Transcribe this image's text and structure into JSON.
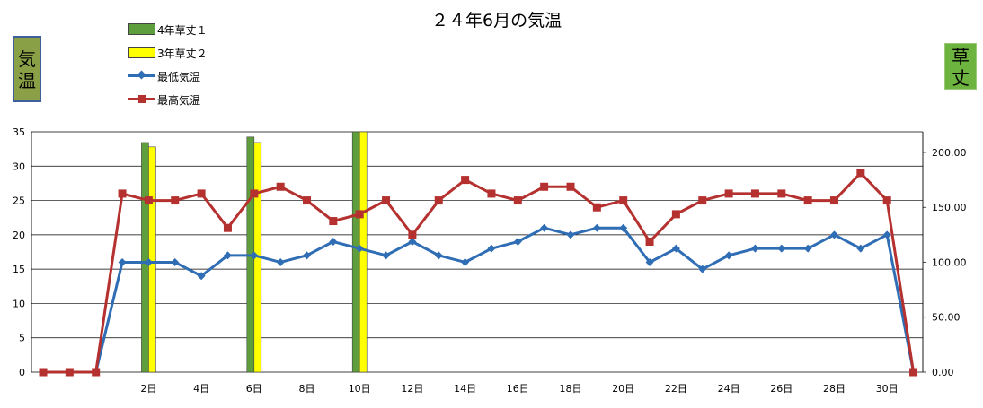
{
  "title": "２４年6月の気温",
  "left_axis_box": {
    "chars": [
      "気",
      "温"
    ],
    "color": "#8aa046"
  },
  "right_axis_box": {
    "chars": [
      "草",
      "丈"
    ],
    "color": "#6cb33f"
  },
  "legend": [
    {
      "label": "4年草丈１",
      "kind": "bar",
      "color": "#5f9e3c"
    },
    {
      "label": "3年草丈２",
      "kind": "bar",
      "color": "#ffff00"
    },
    {
      "label": "最低気温",
      "kind": "line",
      "marker": "diamond",
      "color": "#2f6db5"
    },
    {
      "label": "最高気温",
      "kind": "line",
      "marker": "square",
      "color": "#b5312f"
    }
  ],
  "chart_data": {
    "type": "bar+line",
    "title": "２４年6月の気温",
    "x": [
      -2,
      -1,
      0,
      1,
      2,
      3,
      4,
      5,
      6,
      7,
      8,
      9,
      10,
      11,
      12,
      13,
      14,
      15,
      16,
      17,
      18,
      19,
      20,
      21,
      22,
      23,
      24,
      25,
      26,
      27,
      28,
      29,
      30,
      31
    ],
    "x_tick_labels": [
      "2日",
      "4日",
      "6日",
      "8日",
      "10日",
      "12日",
      "14日",
      "16日",
      "18日",
      "20日",
      "22日",
      "24日",
      "26日",
      "28日",
      "30日"
    ],
    "x_tick_values": [
      2,
      4,
      6,
      8,
      10,
      12,
      14,
      16,
      18,
      20,
      22,
      24,
      26,
      28,
      30
    ],
    "ylim_left": [
      0,
      35
    ],
    "yticks_left": [
      "0",
      "5",
      "10",
      "15",
      "20",
      "25",
      "30",
      "35"
    ],
    "ylim_right": [
      0,
      218.75
    ],
    "yticks_right": [
      "0.00",
      "50.00",
      "100.00",
      "150.00",
      "200.00"
    ],
    "grid": true,
    "series": [
      {
        "name": "最低気温",
        "type": "line",
        "axis": "left",
        "color": "#2f6db5",
        "marker": "diamond",
        "values": [
          0,
          0,
          0,
          16,
          16,
          16,
          14,
          17,
          17,
          16,
          17,
          19,
          18,
          17,
          19,
          17,
          16,
          18,
          19,
          21,
          20,
          21,
          21,
          16,
          18,
          15,
          17,
          18,
          18,
          18,
          20,
          18,
          20,
          0
        ]
      },
      {
        "name": "最高気温",
        "type": "line",
        "axis": "left",
        "color": "#b5312f",
        "marker": "square",
        "values": [
          0,
          0,
          0,
          26,
          25,
          25,
          26,
          21,
          26,
          27,
          25,
          22,
          23,
          25,
          20,
          25,
          28,
          26,
          25,
          27,
          27,
          24,
          25,
          19,
          23,
          25,
          26,
          26,
          26,
          25,
          25,
          29,
          25,
          0
        ]
      },
      {
        "name": "4年草丈１",
        "type": "bar",
        "axis": "right",
        "color": "#5f9e3c",
        "points": [
          {
            "x": 2,
            "value": 209
          },
          {
            "x": 6,
            "value": 214
          },
          {
            "x": 10,
            "value": 219
          }
        ]
      },
      {
        "name": "3年草丈２",
        "type": "bar",
        "axis": "right",
        "color": "#ffff00",
        "points": [
          {
            "x": 2,
            "value": 205
          },
          {
            "x": 6,
            "value": 209
          },
          {
            "x": 10,
            "value": 219
          }
        ]
      }
    ]
  }
}
